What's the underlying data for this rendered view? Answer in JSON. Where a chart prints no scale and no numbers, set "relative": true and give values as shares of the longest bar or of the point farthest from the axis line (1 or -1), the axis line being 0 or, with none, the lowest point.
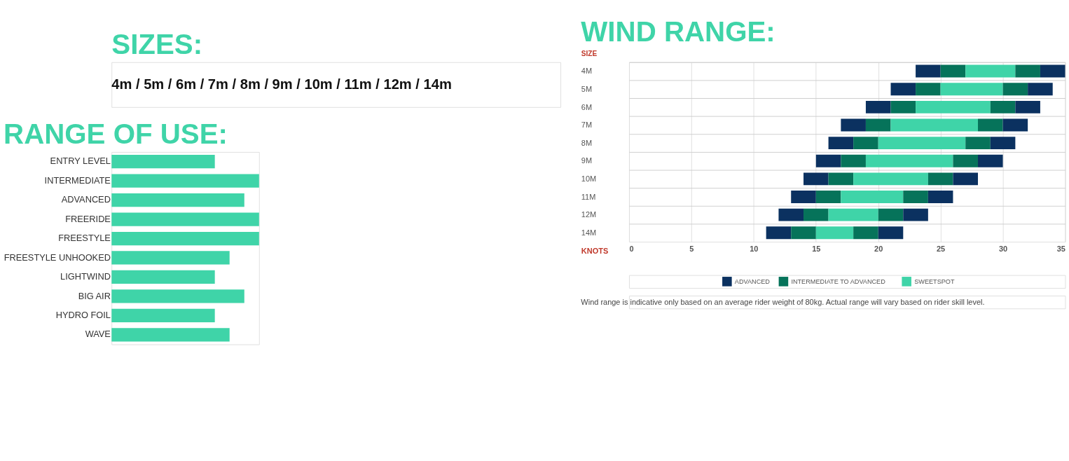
{
  "chart_data": [
    {
      "type": "other",
      "title": "SIZES:",
      "annotations": [
        "4m / 5m / 6m / 7m / 8m / 9m / 10m / 11m / 12m / 14m"
      ]
    },
    {
      "type": "bar",
      "title": "RANGE OF USE:",
      "orientation": "horizontal",
      "relative": true,
      "categories": [
        "ENTRY LEVEL",
        "INTERMEDIATE",
        "ADVANCED",
        "FREERIDE",
        "FREESTYLE",
        "FREESTYLE UNHOOKED",
        "LIGHTWIND",
        "BIG AIR",
        "HYDRO FOIL",
        "WAVE"
      ],
      "color": "#3fd4a8",
      "values": [
        0.7,
        1,
        0.9,
        1,
        1,
        0.8,
        0.7,
        0.9,
        0.7,
        0.8
      ]
    },
    {
      "type": "bar",
      "title": "WIND RANGE:",
      "orientation": "horizontal",
      "ylabel": "SIZE",
      "xlabel": "KNOTS",
      "categories": [
        "4M",
        "5M",
        "6M",
        "7M",
        "8M",
        "9M",
        "10M",
        "11M",
        "12M",
        "14M"
      ],
      "xlim": [
        0,
        35
      ],
      "xticks": [
        0,
        5,
        10,
        15,
        20,
        25,
        30,
        35
      ],
      "grid": true,
      "legend": "bottom",
      "series": [
        {
          "name": "ADVANCED",
          "color": "#0b3160",
          "base": [
            23,
            21,
            19,
            17,
            16,
            15,
            14,
            13,
            12,
            11
          ],
          "values": [
            2,
            2,
            2,
            2,
            2,
            2,
            2,
            2,
            2,
            2
          ]
        },
        {
          "name": "INTERMEDIATE TO ADVANCED",
          "color": "#06735a",
          "base": [
            25,
            23,
            21,
            19,
            18,
            17,
            16,
            15,
            14,
            13
          ],
          "values": [
            2,
            2,
            2,
            2,
            2,
            2,
            2,
            2,
            2,
            2
          ]
        },
        {
          "name": "SWEETSPOT",
          "color": "#3fd4a8",
          "base": [
            27,
            25,
            23,
            21,
            20,
            19,
            18,
            17,
            16,
            15
          ],
          "values": [
            4,
            5,
            6,
            7,
            7,
            7,
            6,
            5,
            4,
            3
          ]
        },
        {
          "color": "#06735a",
          "base": [
            31,
            30,
            29,
            28,
            27,
            26,
            24,
            22,
            20,
            18
          ],
          "values": [
            2,
            2,
            2,
            2,
            2,
            2,
            2,
            2,
            2,
            2
          ]
        },
        {
          "color": "#0b3160",
          "base": [
            33,
            32,
            31,
            30,
            29,
            28,
            26,
            24,
            22,
            20
          ],
          "values": [
            2,
            2,
            2,
            2,
            2,
            2,
            2,
            2,
            2,
            2
          ]
        }
      ],
      "annotations": [
        "Wind range is indicative only based on an average rider weight of 80kg. Actual range will vary based on rider skill level."
      ]
    }
  ]
}
